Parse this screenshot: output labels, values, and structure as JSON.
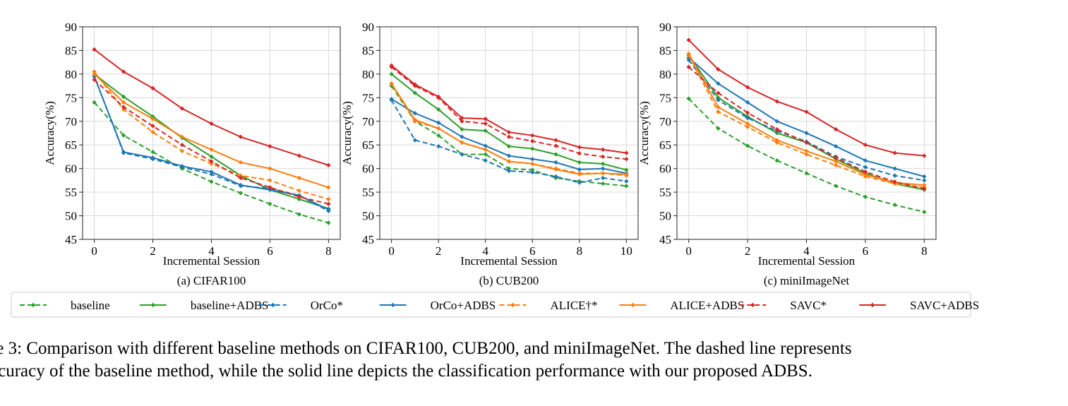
{
  "legend": [
    {
      "label": "baseline",
      "color": "#2ca02c",
      "dashed": true
    },
    {
      "label": "baseline+ADBS",
      "color": "#2ca02c",
      "dashed": false
    },
    {
      "label": "OrCo*",
      "color": "#1f77b4",
      "dashed": true
    },
    {
      "label": "OrCo+ADBS",
      "color": "#1f77b4",
      "dashed": false
    },
    {
      "label": "ALICE†*",
      "color": "#ff7f0e",
      "dashed": true
    },
    {
      "label": "ALICE+ADBS",
      "color": "#ff7f0e",
      "dashed": false
    },
    {
      "label": "SAVC*",
      "color": "#d62728",
      "dashed": true
    },
    {
      "label": "SAVC+ADBS",
      "color": "#d62728",
      "dashed": false
    }
  ],
  "caption": {
    "line1": "re 3: Comparison with different baseline methods on CIFAR100, CUB200, and miniImageNet. The dashed line represents",
    "line2": "ccuracy of the baseline method, while the solid line depicts the classification performance with our proposed ADBS."
  },
  "chart_data": [
    {
      "type": "line",
      "subtitle": "(a) CIFAR100",
      "xlabel": "Incremental Session",
      "ylabel": "Accuracy(%)",
      "x": [
        0,
        1,
        2,
        3,
        4,
        5,
        6,
        7,
        8
      ],
      "xticks": [
        0,
        2,
        4,
        6,
        8
      ],
      "xlim": [
        -0.4,
        8.4
      ],
      "ylim": [
        45,
        90
      ],
      "yticks": [
        45,
        50,
        55,
        60,
        65,
        70,
        75,
        80,
        85,
        90
      ],
      "grid": true,
      "series": [
        {
          "name": "baseline",
          "values": [
            74.0,
            67.0,
            63.5,
            60.0,
            57.2,
            54.8,
            52.5,
            50.3,
            48.5
          ]
        },
        {
          "name": "baseline+ADBS",
          "values": [
            80.0,
            75.2,
            71.0,
            66.5,
            62.5,
            58.5,
            55.5,
            53.5,
            51.5
          ]
        },
        {
          "name": "OrCo*",
          "values": [
            79.5,
            63.3,
            62.0,
            60.3,
            58.8,
            56.3,
            55.8,
            54.3,
            51.0
          ]
        },
        {
          "name": "OrCo+ADBS",
          "values": [
            79.5,
            63.5,
            62.3,
            60.5,
            59.3,
            56.5,
            55.5,
            54.3,
            51.3
          ]
        },
        {
          "name": "ALICE†*",
          "values": [
            80.5,
            72.5,
            67.7,
            63.7,
            61.0,
            58.5,
            57.5,
            55.3,
            53.5
          ]
        },
        {
          "name": "ALICE+ADBS",
          "values": [
            80.0,
            74.0,
            70.5,
            66.7,
            64.0,
            61.3,
            60.0,
            58.0,
            56.0
          ]
        },
        {
          "name": "SAVC*",
          "values": [
            78.8,
            73.0,
            69.0,
            65.0,
            61.5,
            58.0,
            56.0,
            54.0,
            52.5
          ]
        },
        {
          "name": "SAVC+ADBS",
          "values": [
            85.2,
            80.5,
            77.0,
            72.7,
            69.5,
            66.7,
            64.7,
            62.7,
            60.7
          ]
        }
      ]
    },
    {
      "type": "line",
      "subtitle": "(b) CUB200",
      "xlabel": "Incremental Session",
      "ylabel": "Accuracy(%)",
      "x": [
        0,
        1,
        2,
        3,
        4,
        5,
        6,
        7,
        8,
        9,
        10
      ],
      "xticks": [
        0,
        2,
        4,
        6,
        8,
        10
      ],
      "xlim": [
        -0.5,
        10.5
      ],
      "ylim": [
        45,
        90
      ],
      "yticks": [
        45,
        50,
        55,
        60,
        65,
        70,
        75,
        80,
        85,
        90
      ],
      "grid": true,
      "series": [
        {
          "name": "baseline",
          "values": [
            77.5,
            70.0,
            67.0,
            63.0,
            63.0,
            60.0,
            59.7,
            58.0,
            57.3,
            56.8,
            56.3
          ]
        },
        {
          "name": "baseline+ADBS",
          "values": [
            80.0,
            76.0,
            72.5,
            68.3,
            68.0,
            64.7,
            64.2,
            63.0,
            61.3,
            61.0,
            59.7
          ]
        },
        {
          "name": "OrCo*",
          "values": [
            74.5,
            66.0,
            64.7,
            63.0,
            61.7,
            59.5,
            59.2,
            58.3,
            57.0,
            58.0,
            57.3
          ]
        },
        {
          "name": "OrCo+ADBS",
          "values": [
            74.7,
            71.7,
            69.7,
            66.7,
            64.8,
            62.7,
            62.0,
            61.3,
            59.8,
            60.0,
            59.0
          ]
        },
        {
          "name": "ALICE†*",
          "values": [
            78.0,
            70.0,
            68.5,
            65.5,
            64.0,
            61.5,
            61.0,
            60.0,
            59.0,
            59.0,
            58.5
          ]
        },
        {
          "name": "ALICE+ADBS",
          "values": [
            78.0,
            70.3,
            68.5,
            65.5,
            64.0,
            61.5,
            61.0,
            59.8,
            58.8,
            59.0,
            58.8
          ]
        },
        {
          "name": "SAVC*",
          "values": [
            81.5,
            77.5,
            75.0,
            70.0,
            69.5,
            66.7,
            65.8,
            64.8,
            63.2,
            62.5,
            62.0
          ]
        },
        {
          "name": "SAVC+ADBS",
          "values": [
            81.8,
            77.8,
            75.2,
            70.7,
            70.5,
            67.7,
            67.0,
            66.0,
            64.5,
            64.0,
            63.3
          ]
        }
      ]
    },
    {
      "type": "line",
      "subtitle": "(c) miniImageNet",
      "xlabel": "Incremental Session",
      "ylabel": "Accuracy(%)",
      "x": [
        0,
        1,
        2,
        3,
        4,
        5,
        6,
        7,
        8
      ],
      "xticks": [
        0,
        2,
        4,
        6,
        8
      ],
      "xlim": [
        -0.4,
        8.4
      ],
      "ylim": [
        45,
        90
      ],
      "yticks": [
        45,
        50,
        55,
        60,
        65,
        70,
        75,
        80,
        85,
        90
      ],
      "grid": true,
      "series": [
        {
          "name": "baseline",
          "values": [
            74.8,
            68.5,
            64.8,
            61.7,
            59.0,
            56.3,
            54.0,
            52.3,
            50.8
          ]
        },
        {
          "name": "baseline+ADBS",
          "values": [
            84.0,
            75.0,
            71.0,
            67.5,
            65.5,
            62.0,
            59.0,
            56.8,
            55.5
          ]
        },
        {
          "name": "OrCo*",
          "values": [
            83.0,
            74.5,
            70.7,
            68.0,
            65.7,
            62.5,
            60.3,
            58.5,
            57.5
          ]
        },
        {
          "name": "OrCo+ADBS",
          "values": [
            83.5,
            78.0,
            74.0,
            70.0,
            67.5,
            64.7,
            61.7,
            60.0,
            58.3
          ]
        },
        {
          "name": "ALICE†*",
          "values": [
            84.0,
            72.0,
            68.8,
            65.5,
            63.0,
            60.7,
            58.3,
            56.8,
            56.0
          ]
        },
        {
          "name": "ALICE+ADBS",
          "values": [
            84.3,
            73.0,
            69.5,
            66.0,
            63.7,
            61.5,
            58.7,
            57.0,
            56.5
          ]
        },
        {
          "name": "SAVC*",
          "values": [
            81.5,
            76.0,
            71.8,
            68.3,
            65.5,
            62.3,
            59.3,
            57.2,
            55.7
          ]
        },
        {
          "name": "SAVC+ADBS",
          "values": [
            87.2,
            81.0,
            77.2,
            74.2,
            72.0,
            68.3,
            65.0,
            63.3,
            62.7
          ]
        }
      ]
    }
  ]
}
